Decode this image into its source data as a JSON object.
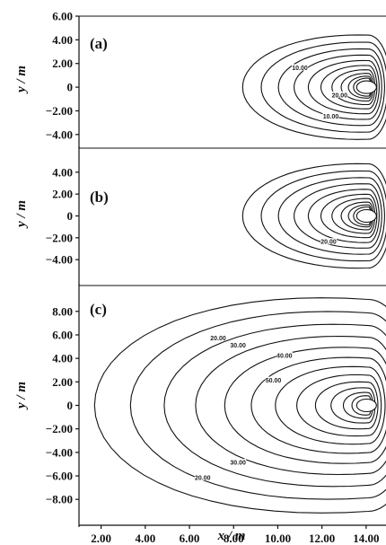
{
  "chart_data": [
    {
      "type": "contour",
      "panel_label": "(a)",
      "ylabel": "y / m",
      "ylim": [
        -5.0,
        6.0
      ],
      "yticks": [
        "6.00",
        "4.00",
        "2.00",
        "0",
        "−2.00",
        "−4.00"
      ],
      "ytick_values": [
        6,
        4,
        2,
        0,
        -2,
        -4
      ],
      "xlim": [
        1.0,
        14.9
      ],
      "source_center": {
        "x": 14.1,
        "y": 0
      },
      "levels": 10,
      "contour_labels": [
        {
          "text": "10.00",
          "x": 11.0,
          "y": 1.6
        },
        {
          "text": "20.00",
          "x": 12.8,
          "y": -0.7
        },
        {
          "text": "10.00",
          "x": 12.4,
          "y": -2.5
        }
      ]
    },
    {
      "type": "contour",
      "panel_label": "(b)",
      "ylabel": "y / m",
      "ylim": [
        -6.2,
        6.2
      ],
      "yticks": [
        "4.00",
        "2.00",
        "0",
        "−2.00",
        "−4.00"
      ],
      "ytick_values": [
        4,
        2,
        0,
        -2,
        -4
      ],
      "xlim": [
        1.0,
        14.9
      ],
      "source_center": {
        "x": 14.1,
        "y": 0
      },
      "levels": 10,
      "contour_labels": [
        {
          "text": "20.00",
          "x": 12.3,
          "y": -2.4
        }
      ]
    },
    {
      "type": "contour",
      "panel_label": "(c)",
      "ylabel": "y / m",
      "ylim": [
        -10.2,
        10.2
      ],
      "yticks": [
        "8.00",
        "6.00",
        "4.00",
        "2.00",
        "0",
        "−2.00",
        "−4.00",
        "−6.00",
        "−8.00"
      ],
      "ytick_values": [
        8,
        6,
        4,
        2,
        0,
        -2,
        -4,
        -6,
        -8
      ],
      "xlabel": "x / m",
      "xticks": [
        "2.00",
        "4.00",
        "6.00",
        "8.00",
        "10.00",
        "12.00",
        "14.00"
      ],
      "xtick_values": [
        2,
        4,
        6,
        8,
        10,
        12,
        14
      ],
      "xlim": [
        1.0,
        14.9
      ],
      "source_center": {
        "x": 14.1,
        "y": 0
      },
      "levels": 12,
      "contour_labels": [
        {
          "text": "20.00",
          "x": 7.3,
          "y": 5.7
        },
        {
          "text": "30.00",
          "x": 8.2,
          "y": 5.1
        },
        {
          "text": "40.00",
          "x": 10.3,
          "y": 4.2
        },
        {
          "text": "50.00",
          "x": 9.8,
          "y": 2.1
        },
        {
          "text": "30.00",
          "x": 8.2,
          "y": -4.9
        },
        {
          "text": "20.00",
          "x": 6.6,
          "y": -6.2
        }
      ]
    }
  ]
}
